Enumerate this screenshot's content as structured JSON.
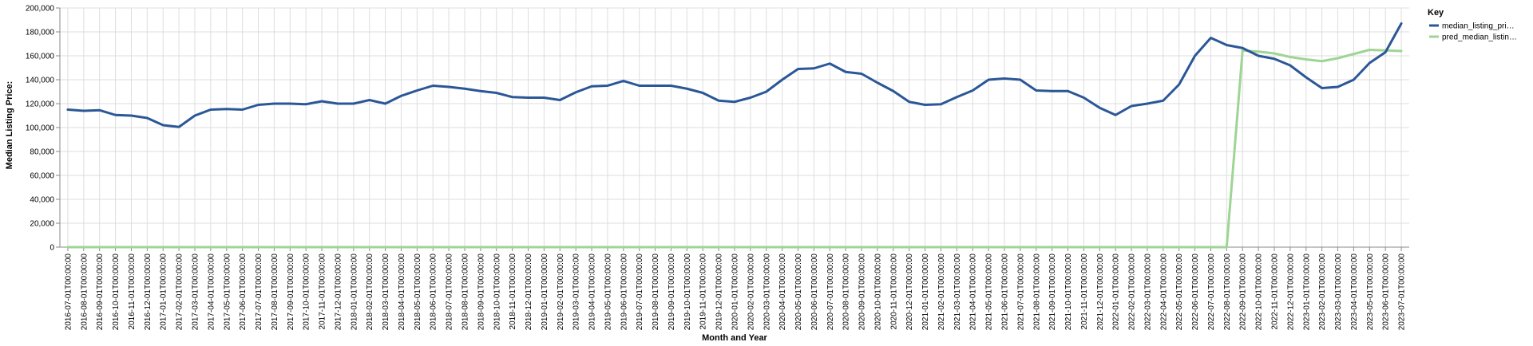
{
  "chart_data": {
    "type": "line",
    "xlabel": "Month and Year",
    "ylabel": "Median Listing Price:",
    "ylim": [
      0,
      200000
    ],
    "yticks": [
      0,
      20000,
      40000,
      60000,
      80000,
      100000,
      120000,
      140000,
      160000,
      180000,
      200000
    ],
    "ytick_labels": [
      "0",
      "20,000",
      "40,000",
      "60,000",
      "80,000",
      "100,000",
      "120,000",
      "140,000",
      "160,000",
      "180,000",
      "200,000"
    ],
    "grid": true,
    "legend_title": "Key",
    "legend_position": "right",
    "categories": [
      "2016-07-01T00:00:00",
      "2016-08-01T00:00:00",
      "2016-09-01T00:00:00",
      "2016-10-01T00:00:00",
      "2016-11-01T00:00:00",
      "2016-12-01T00:00:00",
      "2017-01-01T00:00:00",
      "2017-02-01T00:00:00",
      "2017-03-01T00:00:00",
      "2017-04-01T00:00:00",
      "2017-05-01T00:00:00",
      "2017-06-01T00:00:00",
      "2017-07-01T00:00:00",
      "2017-08-01T00:00:00",
      "2017-09-01T00:00:00",
      "2017-10-01T00:00:00",
      "2017-11-01T00:00:00",
      "2017-12-01T00:00:00",
      "2018-01-01T00:00:00",
      "2018-02-01T00:00:00",
      "2018-03-01T00:00:00",
      "2018-04-01T00:00:00",
      "2018-05-01T00:00:00",
      "2018-06-01T00:00:00",
      "2018-07-01T00:00:00",
      "2018-08-01T00:00:00",
      "2018-09-01T00:00:00",
      "2018-10-01T00:00:00",
      "2018-11-01T00:00:00",
      "2018-12-01T00:00:00",
      "2019-01-01T00:00:00",
      "2019-02-01T00:00:00",
      "2019-03-01T00:00:00",
      "2019-04-01T00:00:00",
      "2019-05-01T00:00:00",
      "2019-06-01T00:00:00",
      "2019-07-01T00:00:00",
      "2019-08-01T00:00:00",
      "2019-09-01T00:00:00",
      "2019-10-01T00:00:00",
      "2019-11-01T00:00:00",
      "2019-12-01T00:00:00",
      "2020-01-01T00:00:00",
      "2020-02-01T00:00:00",
      "2020-03-01T00:00:00",
      "2020-04-01T00:00:00",
      "2020-05-01T00:00:00",
      "2020-06-01T00:00:00",
      "2020-07-01T00:00:00",
      "2020-08-01T00:00:00",
      "2020-09-01T00:00:00",
      "2020-10-01T00:00:00",
      "2020-11-01T00:00:00",
      "2020-12-01T00:00:00",
      "2021-01-01T00:00:00",
      "2021-02-01T00:00:00",
      "2021-03-01T00:00:00",
      "2021-04-01T00:00:00",
      "2021-05-01T00:00:00",
      "2021-06-01T00:00:00",
      "2021-07-01T00:00:00",
      "2021-08-01T00:00:00",
      "2021-09-01T00:00:00",
      "2021-10-01T00:00:00",
      "2021-11-01T00:00:00",
      "2021-12-01T00:00:00",
      "2022-01-01T00:00:00",
      "2022-02-01T00:00:00",
      "2022-03-01T00:00:00",
      "2022-04-01T00:00:00",
      "2022-05-01T00:00:00",
      "2022-06-01T00:00:00",
      "2022-07-01T00:00:00",
      "2022-08-01T00:00:00",
      "2022-09-01T00:00:00",
      "2022-10-01T00:00:00",
      "2022-11-01T00:00:00",
      "2022-12-01T00:00:00",
      "2023-01-01T00:00:00",
      "2023-02-01T00:00:00",
      "2023-03-01T00:00:00",
      "2023-04-01T00:00:00",
      "2023-05-01T00:00:00",
      "2023-06-01T00:00:00",
      "2023-07-01T00:00:00"
    ],
    "series": [
      {
        "name": "median_listing_pri…",
        "color": "#2b5797",
        "values": [
          115000,
          114000,
          114500,
          110500,
          110000,
          108000,
          102000,
          100500,
          110000,
          115000,
          115500,
          115000,
          119000,
          120000,
          120000,
          119500,
          122000,
          120000,
          120000,
          123000,
          120000,
          126500,
          131000,
          135000,
          134000,
          132500,
          130500,
          129000,
          125500,
          125000,
          125000,
          123000,
          129500,
          134500,
          135000,
          139000,
          135000,
          135000,
          135000,
          132500,
          129000,
          122500,
          121500,
          125000,
          130000,
          140000,
          149000,
          149500,
          153500,
          146500,
          145000,
          137500,
          130500,
          121500,
          119000,
          119500,
          125500,
          131000,
          140000,
          141000,
          140000,
          131000,
          130500,
          130500,
          125000,
          116500,
          110500,
          118000,
          120000,
          122500,
          136000,
          160000,
          175000,
          169000,
          166500,
          160000,
          157500,
          152000,
          142000,
          133000,
          134000,
          140000,
          154000,
          163000,
          187000
        ]
      },
      {
        "name": "pred_median_listin…",
        "color": "#9ed594",
        "values": [
          0,
          0,
          0,
          0,
          0,
          0,
          0,
          0,
          0,
          0,
          0,
          0,
          0,
          0,
          0,
          0,
          0,
          0,
          0,
          0,
          0,
          0,
          0,
          0,
          0,
          0,
          0,
          0,
          0,
          0,
          0,
          0,
          0,
          0,
          0,
          0,
          0,
          0,
          0,
          0,
          0,
          0,
          0,
          0,
          0,
          0,
          0,
          0,
          0,
          0,
          0,
          0,
          0,
          0,
          0,
          0,
          0,
          0,
          0,
          0,
          0,
          0,
          0,
          0,
          0,
          0,
          0,
          0,
          0,
          0,
          0,
          0,
          0,
          0,
          164500,
          163500,
          162000,
          159000,
          157000,
          155500,
          158000,
          161500,
          165000,
          164500,
          164000
        ]
      }
    ]
  }
}
